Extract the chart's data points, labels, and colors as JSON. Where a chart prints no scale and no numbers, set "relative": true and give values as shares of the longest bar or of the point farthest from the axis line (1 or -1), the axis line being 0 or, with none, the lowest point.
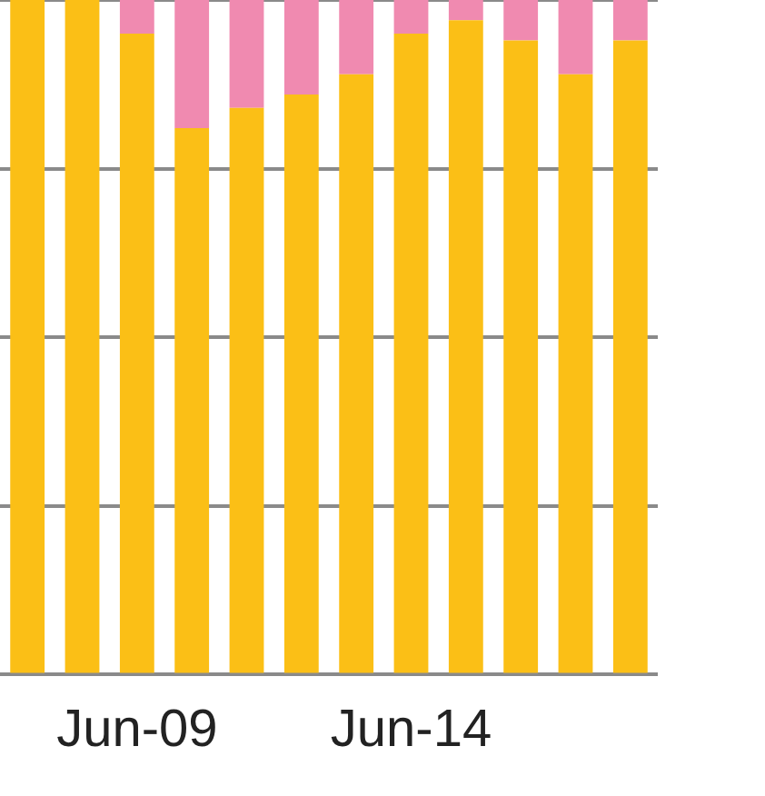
{
  "chart_data": {
    "type": "bar",
    "stacked": true,
    "relative": true,
    "grid": "y",
    "legend": false,
    "tick_labels": "x",
    "categories": [
      null,
      null,
      "Jun-09",
      null,
      null,
      null,
      null,
      "Jun-14",
      null,
      null,
      null,
      null
    ],
    "series": [
      {
        "color": "#fbbf16",
        "values": [
          1,
          1,
          0.95,
          0.81,
          0.84,
          0.86,
          0.89,
          0.95,
          0.97,
          0.94,
          0.89,
          0.94
        ]
      },
      {
        "color": "#f08ab0",
        "values": [
          0,
          0,
          0.05,
          0.19,
          0.16,
          0.14,
          0.11,
          0.05,
          0.03,
          0.06,
          0.11,
          0.06
        ]
      }
    ]
  }
}
